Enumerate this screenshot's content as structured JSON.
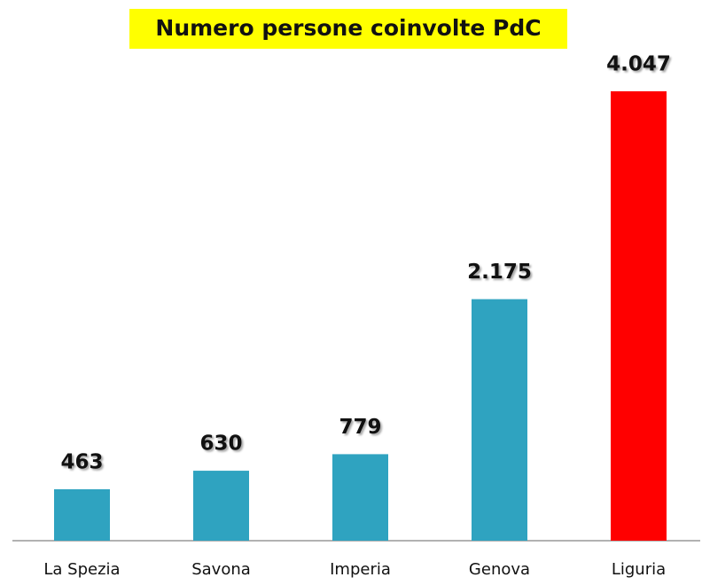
{
  "chart_data": {
    "type": "bar",
    "title": "Numero persone coinvolte PdC",
    "categories": [
      "La Spezia",
      "Savona",
      "Imperia",
      "Genova",
      "Liguria"
    ],
    "values": [
      463,
      630,
      779,
      2175,
      4047
    ],
    "value_labels": [
      "463",
      "630",
      "779",
      "2.175",
      "4.047"
    ],
    "colors": [
      "#2fa3c0",
      "#2fa3c0",
      "#2fa3c0",
      "#2fa3c0",
      "#ff0000"
    ],
    "title_background": "#ffff00"
  }
}
